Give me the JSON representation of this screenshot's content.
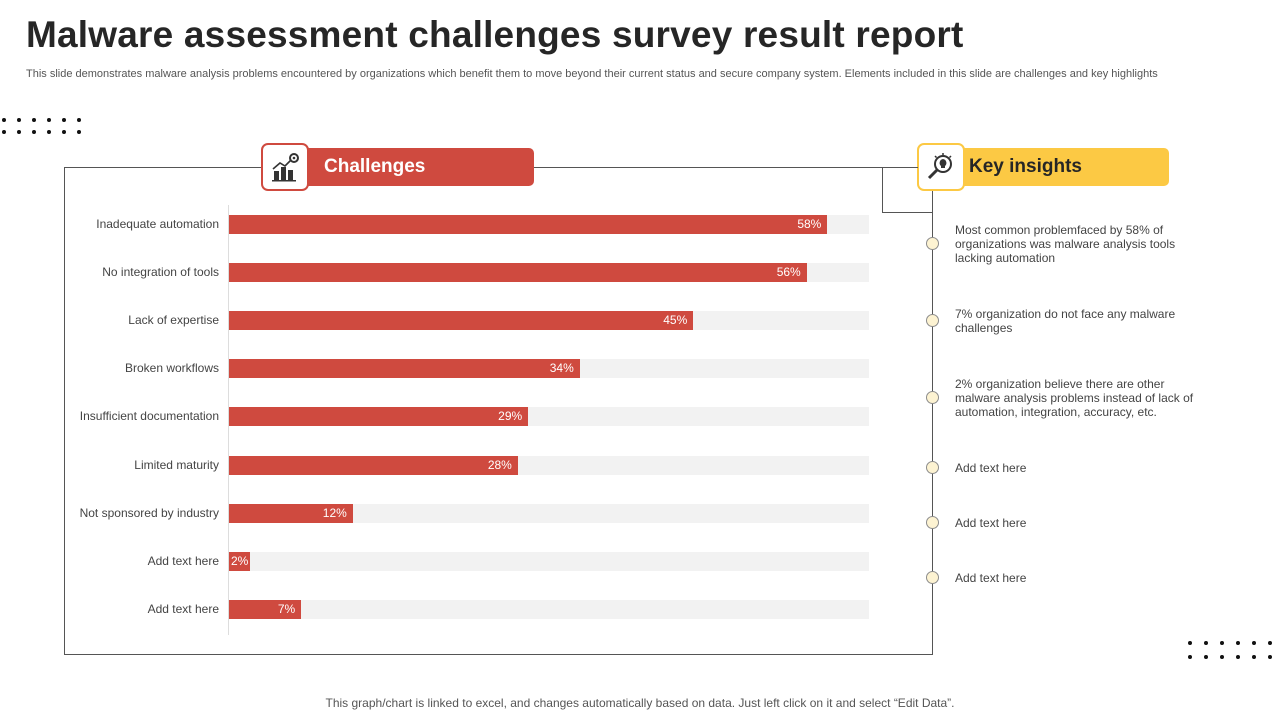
{
  "header": {
    "title": "Malware assessment challenges survey result report",
    "subtitle": "This slide demonstrates malware analysis problems encountered by organizations which benefit them to move beyond their current status and secure company system. Elements included in this slide are challenges and key highlights"
  },
  "sections": {
    "challenges_label": "Challenges",
    "insights_label": "Key insights"
  },
  "chart_data": {
    "type": "bar",
    "orientation": "horizontal",
    "title": "Challenges",
    "categories": [
      "Inadequate automation",
      "No integration of tools",
      "Lack of expertise",
      "Broken workflows",
      "Insufficient documentation",
      "Limited maturity",
      "Not sponsored by industry",
      "Add text here",
      "Add text here"
    ],
    "values": [
      58,
      56,
      45,
      34,
      29,
      28,
      12,
      2,
      7
    ],
    "value_labels": [
      "58%",
      "56%",
      "45%",
      "34%",
      "29%",
      "28%",
      "12%",
      "2%",
      "7%"
    ],
    "xlim": [
      0,
      60
    ],
    "unit": "%",
    "colors": {
      "bar": "#cf4a3f",
      "track": "#f2f2f2"
    }
  },
  "insights": [
    "Most common problemfaced by 58% of organizations was malware analysis tools lacking automation",
    "7% organization do not face any malware challenges",
    "2% organization believe there are other malware analysis problems instead of lack of automation, integration, accuracy, etc.",
    "Add text here",
    "Add text here",
    "Add text here"
  ],
  "footer": {
    "note": "This graph/chart is linked to excel,  and changes automatically based on data. Just left click on it and select “Edit Data”."
  },
  "theme": {
    "red": "#cf4a3f",
    "yellow": "#fcc944",
    "title_color": "#262626"
  },
  "icons": {
    "challenges": "bar-chart-gear-icon",
    "insights": "magnifier-lightbulb-icon"
  }
}
